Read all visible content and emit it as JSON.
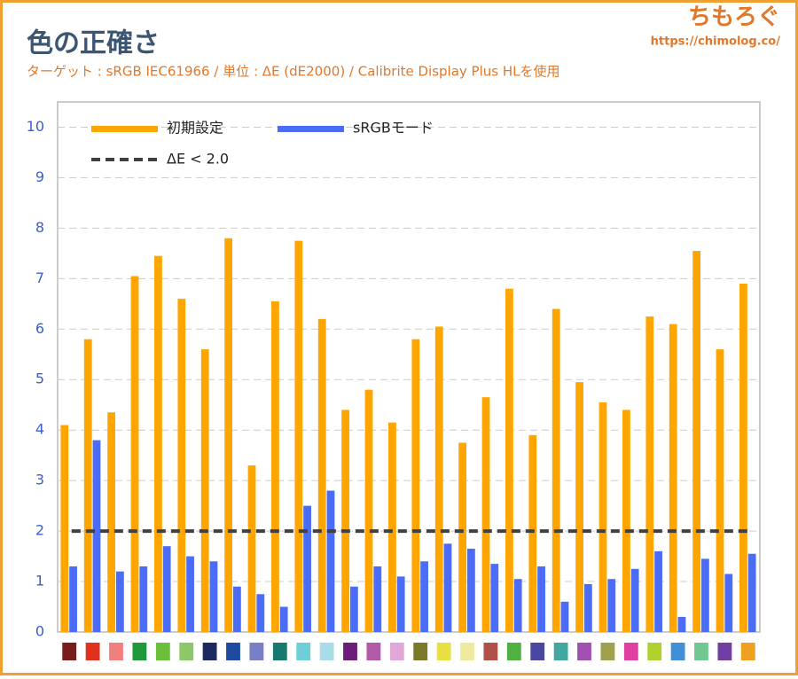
{
  "chart_data": {
    "type": "bar",
    "title": "色の正確さ",
    "subtitle": "ターゲット : sRGB IEC61966 / 単位 : ΔE (dE2000) / Calibrite Display Plus HLを使用",
    "brand": "ちもろぐ",
    "brand_url": "https://chimolog.co/",
    "categories": [
      null,
      null,
      null,
      null,
      null,
      null,
      null,
      null,
      null,
      null,
      null,
      null,
      null,
      null,
      null,
      null,
      null,
      null,
      null,
      null,
      null,
      null,
      null,
      null,
      null,
      null,
      null,
      null,
      null,
      null
    ],
    "category_colors": [
      "#7a1c1c",
      "#e0301e",
      "#f08080",
      "#1e9a3a",
      "#6cbf3a",
      "#8dc868",
      "#1a2a5e",
      "#1e4ba0",
      "#7a7ec8",
      "#177a6e",
      "#6ecfd8",
      "#a8dce6",
      "#6a1e7a",
      "#b05aa8",
      "#e0a8d8",
      "#7a7a2a",
      "#e8e040",
      "#f0eaa0",
      "#b05048",
      "#50b040",
      "#4848a0",
      "#40a8a0",
      "#a050b0",
      "#a0a050",
      "#e040a0",
      "#b0d030",
      "#4090d8",
      "#70c890",
      "#7040a0",
      "#f0a020"
    ],
    "series": [
      {
        "name": "初期設定",
        "color": "#ffa500",
        "values": [
          4.1,
          5.8,
          4.35,
          7.05,
          7.45,
          6.6,
          5.6,
          7.8,
          3.3,
          6.55,
          7.75,
          6.2,
          4.4,
          4.8,
          4.15,
          5.8,
          6.05,
          3.75,
          4.65,
          6.8,
          3.9,
          6.4,
          4.95,
          4.55,
          4.4,
          6.25,
          6.1,
          7.55,
          5.6,
          6.9
        ]
      },
      {
        "name": "sRGBモード",
        "color": "#4a6cf7",
        "values": [
          1.3,
          3.8,
          1.2,
          1.3,
          1.7,
          1.5,
          1.4,
          0.9,
          0.75,
          0.5,
          2.5,
          2.8,
          0.9,
          1.3,
          1.1,
          1.4,
          1.75,
          1.65,
          1.35,
          1.05,
          1.3,
          0.6,
          0.95,
          1.05,
          1.25,
          1.6,
          0.3,
          1.45,
          1.15,
          1.55
        ]
      }
    ],
    "reference_line": {
      "name": "ΔE < 2.0",
      "value": 2.0,
      "color": "#404040"
    },
    "ylim": [
      0,
      10.5
    ],
    "yticks": [
      0,
      1,
      2,
      3,
      4,
      5,
      6,
      7,
      8,
      9,
      10
    ],
    "grid": true,
    "legend": "upper left"
  }
}
